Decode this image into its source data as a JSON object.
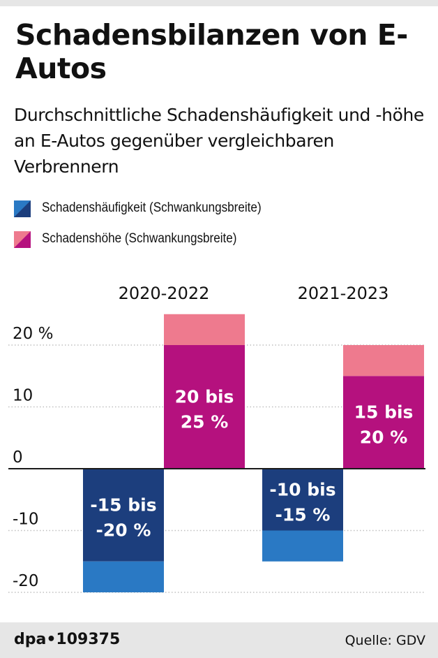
{
  "title": "Schadensbilanzen von E-Autos",
  "subtitle": "Durchschnittliche Schadenshäufigkeit und -höhe an E-Autos gegenüber vergleichbaren Verbrennern",
  "legend": [
    {
      "label": "Schadenshäufigkeit (Schwankungsbreite)",
      "color_dark": "#1c3e7d",
      "color_light": "#2a79c4"
    },
    {
      "label": "Schadenshöhe (Schwankungsbreite)",
      "color_dark": "#b5117e",
      "color_light": "#ee7a8e"
    }
  ],
  "chart_data": {
    "type": "bar",
    "categories": [
      "2020-2022",
      "2021-2023"
    ],
    "yticks": [
      {
        "value": 20,
        "label": "20 %"
      },
      {
        "value": 10,
        "label": "10"
      },
      {
        "value": 0,
        "label": "0"
      },
      {
        "value": -10,
        "label": "-10"
      },
      {
        "value": -20,
        "label": "-20"
      }
    ],
    "ylim": [
      -20,
      25
    ],
    "series": [
      {
        "name": "Schadenshäufigkeit (Schwankungsbreite)",
        "ranges": [
          [
            -15,
            -20
          ],
          [
            -10,
            -15
          ]
        ],
        "data_labels": [
          [
            "-15 bis",
            "-20 %"
          ],
          [
            "-10 bis",
            "-15 %"
          ]
        ]
      },
      {
        "name": "Schadenshöhe (Schwankungsbreite)",
        "ranges": [
          [
            20,
            25
          ],
          [
            15,
            20
          ]
        ],
        "data_labels": [
          [
            "20 bis",
            "25 %"
          ],
          [
            "15 bis",
            "20 %"
          ]
        ]
      }
    ],
    "colors": {
      "grid": "#bfbfbf",
      "zero_line": "#1a1a1a"
    }
  },
  "footer": {
    "brand": "dpa•109375",
    "source": "Quelle: GDV"
  }
}
